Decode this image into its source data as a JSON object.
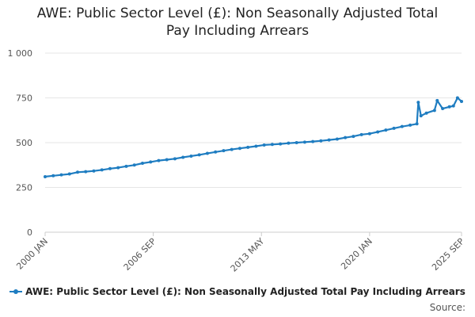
{
  "chart_data": {
    "type": "line",
    "title": "AWE: Public Sector Level (£): Non Seasonally Adjusted Total Pay Including Arrears",
    "title_lines": [
      "AWE: Public Sector Level (£): Non Seasonally Adjusted Total",
      "Pay Including Arrears"
    ],
    "xlabel": "",
    "ylabel": "",
    "x_ticks": [
      "2000 JAN",
      "2006 SEP",
      "2013 MAY",
      "2020 JAN",
      "2025 SEP"
    ],
    "y_ticks": [
      "0",
      "250",
      "500",
      "750",
      "1 000"
    ],
    "ylim": [
      0,
      1000
    ],
    "xlim": [
      "2000-01",
      "2025-09"
    ],
    "grid": true,
    "legend_position": "bottom",
    "source_label": "Source:",
    "color": "#1f7dc1",
    "series": [
      {
        "name": "AWE: Public Sector Level (£): Non Seasonally Adjusted Total Pay Including Arrears",
        "x": [
          "2000-01",
          "2000-07",
          "2001-01",
          "2001-07",
          "2002-01",
          "2002-07",
          "2003-01",
          "2003-07",
          "2004-01",
          "2004-07",
          "2005-01",
          "2005-07",
          "2006-01",
          "2006-07",
          "2007-01",
          "2007-07",
          "2008-01",
          "2008-07",
          "2009-01",
          "2009-07",
          "2010-01",
          "2010-07",
          "2011-01",
          "2011-07",
          "2012-01",
          "2012-07",
          "2013-01",
          "2013-07",
          "2014-01",
          "2014-07",
          "2015-01",
          "2015-07",
          "2016-01",
          "2016-07",
          "2017-01",
          "2017-07",
          "2018-01",
          "2018-07",
          "2019-01",
          "2019-07",
          "2020-01",
          "2020-07",
          "2021-01",
          "2021-07",
          "2022-01",
          "2022-07",
          "2022-12",
          "2023-01",
          "2023-03",
          "2023-07",
          "2024-01",
          "2024-03",
          "2024-07",
          "2024-12",
          "2025-03",
          "2025-06",
          "2025-09"
        ],
        "values": [
          310,
          315,
          320,
          325,
          335,
          338,
          342,
          348,
          355,
          360,
          368,
          375,
          385,
          392,
          400,
          405,
          410,
          418,
          425,
          432,
          440,
          448,
          455,
          462,
          468,
          474,
          480,
          487,
          490,
          493,
          497,
          500,
          503,
          506,
          510,
          515,
          520,
          528,
          535,
          545,
          550,
          560,
          570,
          580,
          590,
          598,
          605,
          725,
          650,
          665,
          680,
          735,
          690,
          700,
          705,
          750,
          730
        ]
      }
    ]
  }
}
